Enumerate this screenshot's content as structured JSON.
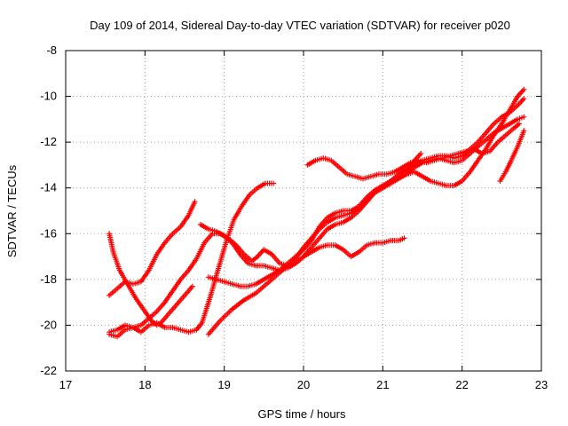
{
  "chart_data": {
    "type": "scatter",
    "title": "Day 109 of 2014, Sidereal Day-to-day VTEC variation (SDTVAR) for receiver p020",
    "xlabel": "GPS time / hours",
    "ylabel": "SDTVAR / TECUs",
    "xlim": [
      17,
      23
    ],
    "ylim": [
      -22,
      -8
    ],
    "xticks": [
      17,
      18,
      19,
      20,
      21,
      22,
      23
    ],
    "yticks": [
      -22,
      -20,
      -18,
      -16,
      -14,
      -12,
      -10,
      -8
    ],
    "grid": true,
    "legend": "none",
    "marker": "plus",
    "colors": {
      "series": "#ff0000",
      "grid": "#a0a0a0",
      "axis": "#000000"
    },
    "series": [
      {
        "points": [
          [
            17.55,
            -16.0
          ],
          [
            17.6,
            -16.8
          ],
          [
            17.68,
            -17.6
          ],
          [
            17.78,
            -18.2
          ],
          [
            17.88,
            -18.8
          ],
          [
            17.98,
            -19.3
          ],
          [
            18.08,
            -19.8
          ],
          [
            18.15,
            -20.0
          ],
          [
            18.2,
            -19.9
          ],
          [
            18.3,
            -19.5
          ],
          [
            18.4,
            -19.1
          ],
          [
            18.5,
            -18.7
          ],
          [
            18.6,
            -18.3
          ]
        ]
      },
      {
        "points": [
          [
            17.55,
            -18.7
          ],
          [
            17.65,
            -18.4
          ],
          [
            17.75,
            -18.1
          ],
          [
            17.85,
            -18.2
          ],
          [
            17.95,
            -18.1
          ],
          [
            18.05,
            -17.6
          ],
          [
            18.15,
            -16.9
          ],
          [
            18.25,
            -16.4
          ],
          [
            18.35,
            -16.0
          ],
          [
            18.45,
            -15.7
          ],
          [
            18.55,
            -15.2
          ],
          [
            18.63,
            -14.6
          ]
        ]
      },
      {
        "points": [
          [
            17.55,
            -20.4
          ],
          [
            17.65,
            -20.5
          ],
          [
            17.75,
            -20.2
          ],
          [
            17.85,
            -20.1
          ],
          [
            17.95,
            -20.3
          ],
          [
            18.05,
            -20.0
          ],
          [
            18.15,
            -19.9
          ],
          [
            18.25,
            -20.1
          ],
          [
            18.35,
            -20.1
          ],
          [
            18.45,
            -20.2
          ],
          [
            18.55,
            -20.3
          ],
          [
            18.65,
            -20.2
          ],
          [
            18.72,
            -19.9
          ],
          [
            18.82,
            -18.8
          ],
          [
            18.92,
            -17.6
          ],
          [
            19.02,
            -16.4
          ],
          [
            19.12,
            -15.4
          ],
          [
            19.22,
            -14.8
          ],
          [
            19.32,
            -14.3
          ],
          [
            19.42,
            -14.0
          ],
          [
            19.52,
            -13.8
          ],
          [
            19.62,
            -13.8
          ]
        ]
      },
      {
        "points": [
          [
            17.55,
            -20.3
          ],
          [
            17.65,
            -20.2
          ],
          [
            17.75,
            -20.0
          ],
          [
            17.85,
            -20.1
          ],
          [
            17.95,
            -20.0
          ],
          [
            18.05,
            -19.7
          ],
          [
            18.15,
            -19.4
          ],
          [
            18.25,
            -19.0
          ],
          [
            18.35,
            -18.5
          ],
          [
            18.45,
            -18.0
          ],
          [
            18.55,
            -17.6
          ],
          [
            18.65,
            -17.1
          ],
          [
            18.75,
            -16.4
          ],
          [
            18.85,
            -16.0
          ],
          [
            18.95,
            -16.0
          ],
          [
            19.05,
            -16.2
          ],
          [
            19.15,
            -16.5
          ],
          [
            19.25,
            -16.9
          ],
          [
            19.35,
            -17.2
          ],
          [
            19.42,
            -17.0
          ],
          [
            19.5,
            -16.7
          ],
          [
            19.6,
            -16.9
          ],
          [
            19.7,
            -17.3
          ],
          [
            19.8,
            -17.4
          ],
          [
            19.9,
            -17.3
          ],
          [
            20.0,
            -17.0
          ],
          [
            20.1,
            -16.8
          ],
          [
            20.2,
            -16.6
          ],
          [
            20.3,
            -16.5
          ],
          [
            20.4,
            -16.5
          ],
          [
            20.5,
            -16.7
          ],
          [
            20.6,
            -17.0
          ],
          [
            20.7,
            -16.8
          ],
          [
            20.8,
            -16.5
          ],
          [
            20.9,
            -16.4
          ],
          [
            21.0,
            -16.4
          ],
          [
            21.1,
            -16.3
          ],
          [
            21.2,
            -16.3
          ],
          [
            21.27,
            -16.2
          ]
        ]
      },
      {
        "points": [
          [
            18.7,
            -15.6
          ],
          [
            18.8,
            -15.8
          ],
          [
            18.9,
            -15.9
          ],
          [
            19.0,
            -16.1
          ],
          [
            19.1,
            -16.4
          ],
          [
            19.2,
            -16.9
          ],
          [
            19.3,
            -17.3
          ],
          [
            19.4,
            -17.4
          ],
          [
            19.5,
            -17.4
          ],
          [
            19.6,
            -17.5
          ],
          [
            19.7,
            -17.6
          ],
          [
            19.8,
            -17.5
          ],
          [
            19.9,
            -17.3
          ],
          [
            20.0,
            -17.0
          ],
          [
            20.1,
            -16.6
          ],
          [
            20.2,
            -16.2
          ],
          [
            20.3,
            -15.8
          ],
          [
            20.4,
            -15.6
          ],
          [
            20.5,
            -15.5
          ],
          [
            20.6,
            -15.3
          ],
          [
            20.7,
            -15.0
          ],
          [
            20.8,
            -14.6
          ],
          [
            20.9,
            -14.2
          ],
          [
            21.0,
            -14.0
          ],
          [
            21.1,
            -13.7
          ],
          [
            21.2,
            -13.5
          ],
          [
            21.3,
            -13.4
          ],
          [
            21.4,
            -13.3
          ],
          [
            21.5,
            -13.5
          ],
          [
            21.6,
            -13.7
          ],
          [
            21.7,
            -13.8
          ],
          [
            21.8,
            -13.9
          ],
          [
            21.9,
            -13.9
          ],
          [
            22.0,
            -13.7
          ],
          [
            22.1,
            -13.3
          ],
          [
            22.2,
            -12.8
          ],
          [
            22.3,
            -12.3
          ],
          [
            22.4,
            -11.7
          ],
          [
            22.5,
            -11.2
          ],
          [
            22.6,
            -10.6
          ],
          [
            22.7,
            -10.0
          ],
          [
            22.78,
            -9.7
          ]
        ]
      },
      {
        "points": [
          [
            18.8,
            -17.9
          ],
          [
            18.9,
            -18.0
          ],
          [
            19.0,
            -18.1
          ],
          [
            19.1,
            -18.2
          ],
          [
            19.2,
            -18.3
          ],
          [
            19.3,
            -18.3
          ],
          [
            19.4,
            -18.2
          ],
          [
            19.5,
            -18.0
          ],
          [
            19.6,
            -17.8
          ],
          [
            19.7,
            -17.6
          ],
          [
            19.8,
            -17.3
          ],
          [
            19.9,
            -17.0
          ],
          [
            20.0,
            -16.7
          ],
          [
            20.1,
            -16.3
          ],
          [
            20.2,
            -15.7
          ],
          [
            20.3,
            -15.3
          ],
          [
            20.4,
            -15.1
          ],
          [
            20.5,
            -15.0
          ],
          [
            20.6,
            -15.0
          ],
          [
            20.7,
            -14.8
          ],
          [
            20.8,
            -14.4
          ],
          [
            20.9,
            -14.1
          ],
          [
            21.0,
            -13.9
          ],
          [
            21.1,
            -13.7
          ],
          [
            21.2,
            -13.4
          ],
          [
            21.3,
            -13.2
          ],
          [
            21.4,
            -13.0
          ],
          [
            21.5,
            -12.8
          ],
          [
            21.6,
            -12.7
          ],
          [
            21.7,
            -12.6
          ],
          [
            21.8,
            -12.6
          ],
          [
            21.9,
            -12.7
          ],
          [
            22.0,
            -12.6
          ],
          [
            22.1,
            -12.3
          ],
          [
            22.2,
            -12.0
          ],
          [
            22.3,
            -11.6
          ],
          [
            22.4,
            -11.2
          ],
          [
            22.5,
            -10.9
          ],
          [
            22.6,
            -10.7
          ],
          [
            22.7,
            -10.4
          ],
          [
            22.78,
            -10.1
          ]
        ]
      },
      {
        "points": [
          [
            18.8,
            -20.4
          ],
          [
            18.95,
            -19.8
          ],
          [
            19.1,
            -19.3
          ],
          [
            19.25,
            -18.9
          ],
          [
            19.4,
            -18.6
          ],
          [
            19.5,
            -18.3
          ],
          [
            19.6,
            -18.0
          ],
          [
            19.7,
            -17.7
          ],
          [
            19.8,
            -17.4
          ],
          [
            19.9,
            -17.1
          ],
          [
            20.0,
            -16.6
          ],
          [
            20.1,
            -16.2
          ],
          [
            20.2,
            -15.8
          ],
          [
            20.3,
            -15.5
          ],
          [
            20.4,
            -15.3
          ],
          [
            20.5,
            -15.2
          ],
          [
            20.6,
            -15.1
          ],
          [
            20.7,
            -14.9
          ],
          [
            20.8,
            -14.5
          ],
          [
            20.9,
            -14.2
          ],
          [
            21.0,
            -14.0
          ],
          [
            21.1,
            -13.8
          ],
          [
            21.2,
            -13.6
          ],
          [
            21.3,
            -13.4
          ],
          [
            21.4,
            -13.1
          ],
          [
            21.5,
            -12.9
          ],
          [
            21.6,
            -12.8
          ],
          [
            21.7,
            -12.7
          ],
          [
            21.8,
            -12.8
          ],
          [
            21.9,
            -12.9
          ],
          [
            22.0,
            -12.8
          ],
          [
            22.1,
            -12.5
          ],
          [
            22.2,
            -12.2
          ],
          [
            22.3,
            -11.9
          ],
          [
            22.4,
            -11.6
          ],
          [
            22.5,
            -11.4
          ],
          [
            22.6,
            -11.2
          ],
          [
            22.7,
            -11.0
          ],
          [
            22.78,
            -10.9
          ]
        ]
      },
      {
        "points": [
          [
            20.05,
            -13.0
          ],
          [
            20.15,
            -12.8
          ],
          [
            20.25,
            -12.7
          ],
          [
            20.35,
            -12.8
          ],
          [
            20.45,
            -13.1
          ],
          [
            20.55,
            -13.4
          ],
          [
            20.65,
            -13.5
          ],
          [
            20.75,
            -13.6
          ],
          [
            20.85,
            -13.5
          ],
          [
            20.95,
            -13.4
          ],
          [
            21.05,
            -13.4
          ],
          [
            21.15,
            -13.3
          ],
          [
            21.25,
            -13.1
          ],
          [
            21.35,
            -12.9
          ],
          [
            21.45,
            -12.8
          ],
          [
            21.55,
            -12.9
          ],
          [
            21.65,
            -12.8
          ],
          [
            21.75,
            -12.7
          ],
          [
            21.85,
            -12.6
          ],
          [
            21.95,
            -12.5
          ],
          [
            22.05,
            -12.4
          ],
          [
            22.15,
            -12.3
          ],
          [
            22.25,
            -12.5
          ],
          [
            22.35,
            -12.4
          ],
          [
            22.45,
            -12.0
          ],
          [
            22.55,
            -11.7
          ],
          [
            22.65,
            -11.4
          ],
          [
            22.72,
            -11.2
          ]
        ]
      },
      {
        "points": [
          [
            22.48,
            -13.7
          ],
          [
            22.55,
            -13.3
          ],
          [
            22.62,
            -12.8
          ],
          [
            22.7,
            -12.2
          ],
          [
            22.78,
            -11.5
          ]
        ]
      },
      {
        "points": [
          [
            21.3,
            -13.4
          ],
          [
            21.4,
            -12.8
          ],
          [
            21.48,
            -12.5
          ]
        ]
      }
    ]
  }
}
